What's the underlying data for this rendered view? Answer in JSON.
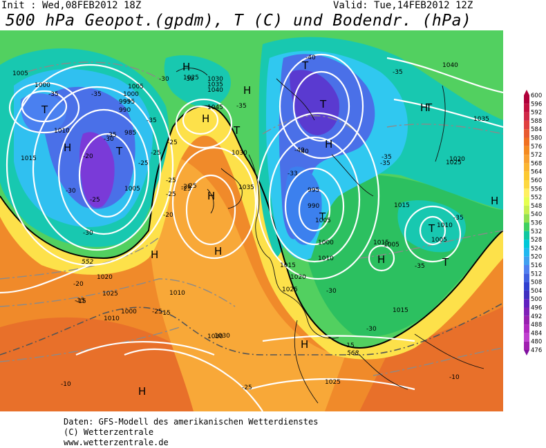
{
  "header": {
    "init": "Init : Wed,08FEB2012 18Z",
    "valid": "Valid: Tue,14FEB2012 12Z",
    "title": "500 hPa Geopot.(gpdm), T (C) und Bodendr. (hPa)"
  },
  "footer": {
    "line1": "Daten: GFS-Modell des amerikanischen Wetterdienstes",
    "line2": "(C) Wetterzentrale",
    "line3": "www.wetterzentrale.de"
  },
  "legend": {
    "levels": [
      "600",
      "596",
      "592",
      "588",
      "584",
      "580",
      "576",
      "572",
      "568",
      "564",
      "560",
      "556",
      "552",
      "548",
      "540",
      "536",
      "532",
      "528",
      "524",
      "520",
      "516",
      "512",
      "508",
      "504",
      "500",
      "496",
      "492",
      "488",
      "484",
      "480",
      "476"
    ],
    "colors": [
      "#b0003a",
      "#c21040",
      "#d02848",
      "#e04040",
      "#e85a30",
      "#f07020",
      "#f48a20",
      "#f8a030",
      "#fbb530",
      "#fcc830",
      "#fdd840",
      "#fff060",
      "#e6ff50",
      "#c8f050",
      "#90e050",
      "#40d060",
      "#10c8a0",
      "#00c8d8",
      "#20b8f0",
      "#40a0f0",
      "#5080f0",
      "#4060e0",
      "#3040d0",
      "#4030c0",
      "#6020c0",
      "#8020b8",
      "#9820b0",
      "#b028c0",
      "#c040d0",
      "#a020b0",
      "#8010a0"
    ]
  },
  "map": {
    "pressure_labels": [
      "1005",
      "1000",
      "995",
      "990",
      "985",
      "1010",
      "1015",
      "1000",
      "995",
      "1005",
      "1010",
      "1020",
      "1025",
      "1030",
      "1035",
      "1040",
      "1045",
      "1025",
      "1030",
      "1035",
      "1030",
      "1010",
      "1005",
      "1000",
      "1040",
      "1035",
      "995",
      "990",
      "1005",
      "1000",
      "1010",
      "1015",
      "1020",
      "1025",
      "1015",
      "1010",
      "1005",
      "1015",
      "1020",
      "1025",
      "1030",
      "1025",
      "1005",
      "1015"
    ],
    "temp_labels": [
      "-35",
      "-35",
      "-30",
      "-30",
      "-35",
      "-25",
      "-25",
      "-20",
      "-25",
      "-30",
      "-25",
      "-25",
      "-25",
      "-20",
      "-25",
      "-30",
      "-35",
      "-20",
      "-15",
      "-35",
      "-40",
      "-40",
      "-35",
      "-33",
      "-40",
      "-35",
      "-35",
      "-25",
      "-30",
      "-35",
      "-35",
      "-25",
      "-30",
      "-15",
      "-10",
      "-10",
      "-15",
      "-25",
      "-30",
      "-15",
      "-25"
    ],
    "centers": [
      "H",
      "T",
      "H",
      "T",
      "H",
      "H",
      "H",
      "T",
      "T",
      "H",
      "T",
      "T",
      "H",
      "T",
      "H",
      "H",
      "H",
      "H",
      "H",
      "T",
      "T",
      "H"
    ],
    "contour_552": "552",
    "contour_568": "568"
  }
}
